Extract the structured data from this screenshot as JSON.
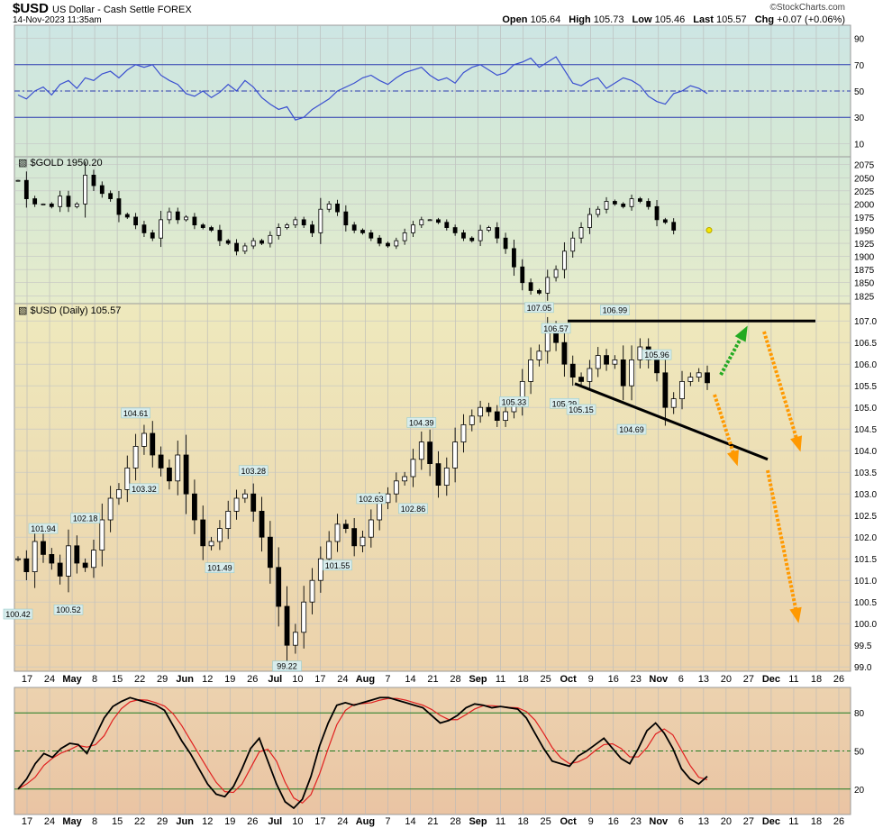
{
  "header": {
    "symbol": "$USD",
    "description": "US Dollar - Cash Settle  FOREX",
    "timestamp": "14-Nov-2023 11:35am",
    "open_label": "Open",
    "open": "105.64",
    "high_label": "High",
    "high": "105.73",
    "low_label": "Low",
    "low": "105.46",
    "last_label": "Last",
    "last": "105.57",
    "chg_label": "Chg",
    "chg": "+0.07 (+0.06%)",
    "credit": "©StockCharts.com"
  },
  "panels": {
    "gold_label": "$GOLD 1950.20",
    "usd_label": "$USD (Daily) 105.57"
  },
  "x_axis": {
    "labels": [
      "17",
      "24",
      "May",
      "8",
      "15",
      "22",
      "29",
      "Jun",
      "12",
      "19",
      "26",
      "Jul",
      "10",
      "17",
      "24",
      "Aug",
      "7",
      "14",
      "21",
      "28",
      "Sep",
      "11",
      "18",
      "25",
      "Oct",
      "9",
      "16",
      "23",
      "Nov",
      "6",
      "13",
      "20",
      "27",
      "Dec",
      "11",
      "18",
      "26"
    ],
    "bold": [
      "May",
      "Jun",
      "Jul",
      "Aug",
      "Sep",
      "Oct",
      "Nov",
      "Dec"
    ]
  },
  "colors": {
    "rsi_line": "#3a4fd0",
    "stoch_k": "#000000",
    "stoch_d": "#e02020",
    "green_arrow": "#22aa22",
    "orange_arrow": "#ff9900",
    "frame": "#9a9a9a"
  },
  "chart_data": [
    {
      "type": "line",
      "name": "RSI",
      "ylim": [
        0,
        100
      ],
      "ticks": [
        10,
        30,
        50,
        70,
        90
      ],
      "reference_lines": [
        30,
        50,
        70
      ],
      "values": [
        47,
        44,
        50,
        53,
        47,
        55,
        58,
        52,
        60,
        58,
        63,
        65,
        60,
        66,
        70,
        68,
        70,
        62,
        58,
        55,
        48,
        46,
        50,
        45,
        49,
        55,
        50,
        58,
        53,
        45,
        40,
        36,
        38,
        28,
        30,
        36,
        40,
        44,
        50,
        53,
        56,
        60,
        62,
        58,
        55,
        60,
        64,
        66,
        68,
        62,
        58,
        60,
        56,
        64,
        68,
        70,
        66,
        62,
        64,
        70,
        72,
        75,
        68,
        72,
        76,
        66,
        56,
        54,
        58,
        60,
        52,
        56,
        60,
        58,
        54,
        46,
        42,
        40,
        48,
        50,
        54,
        52,
        48
      ]
    },
    {
      "type": "line",
      "name": "$GOLD 1950.20",
      "ylim": [
        1810,
        2090
      ],
      "ticks": [
        1825,
        1850,
        1875,
        1900,
        1925,
        1950,
        1975,
        2000,
        2025,
        2050,
        2075
      ],
      "values": [
        2045,
        2010,
        2000,
        2000,
        1995,
        2015,
        1995,
        2000,
        2055,
        2035,
        2020,
        2010,
        1980,
        1975,
        1960,
        1945,
        1935,
        1970,
        1985,
        1970,
        1975,
        1960,
        1955,
        1950,
        1930,
        1925,
        1910,
        1920,
        1930,
        1925,
        1940,
        1955,
        1960,
        1970,
        1960,
        1945,
        1990,
        2000,
        1985,
        1960,
        1950,
        1945,
        1935,
        1925,
        1920,
        1930,
        1945,
        1960,
        1970,
        1970,
        1965,
        1955,
        1945,
        1935,
        1930,
        1950,
        1955,
        1935,
        1915,
        1880,
        1850,
        1835,
        1830,
        1860,
        1875,
        1910,
        1935,
        1955,
        1980,
        1990,
        2005,
        2000,
        1995,
        2010,
        2005,
        1995,
        1970,
        1965,
        1950
      ]
    },
    {
      "type": "bar",
      "name": "$USD (Daily) 105.57",
      "ylim": [
        98.9,
        107.4
      ],
      "ticks": [
        99.0,
        99.5,
        100.0,
        100.5,
        101.0,
        101.5,
        102.0,
        102.5,
        103.0,
        103.5,
        104.0,
        104.5,
        105.0,
        105.5,
        106.0,
        106.5,
        107.0
      ],
      "closes": [
        101.5,
        101.2,
        101.9,
        101.6,
        101.4,
        101.1,
        101.8,
        101.4,
        101.3,
        101.7,
        102.4,
        102.9,
        103.1,
        103.6,
        104.1,
        104.4,
        103.9,
        103.6,
        103.3,
        103.9,
        103.0,
        102.4,
        101.8,
        101.9,
        102.2,
        102.6,
        102.9,
        103.0,
        102.6,
        102.0,
        101.3,
        100.4,
        99.5,
        99.8,
        100.5,
        101.0,
        101.5,
        101.9,
        102.3,
        102.2,
        101.8,
        102.0,
        102.4,
        102.8,
        103.0,
        103.3,
        103.4,
        103.8,
        104.2,
        103.7,
        103.2,
        103.6,
        104.2,
        104.6,
        104.8,
        105.0,
        104.9,
        104.7,
        104.9,
        105.1,
        105.6,
        106.1,
        106.3,
        106.8,
        106.5,
        106.0,
        105.7,
        105.6,
        105.9,
        106.2,
        106.0,
        106.1,
        105.5,
        106.1,
        106.4,
        106.1,
        105.8,
        105.0,
        105.2,
        105.6,
        105.7,
        105.8,
        105.57
      ],
      "annotations": [
        {
          "label": "100.42",
          "value": 100.42
        },
        {
          "label": "101.94",
          "value": 101.94
        },
        {
          "label": "102.18",
          "value": 102.18
        },
        {
          "label": "100.52",
          "value": 100.52
        },
        {
          "label": "104.61",
          "value": 104.61
        },
        {
          "label": "103.32",
          "value": 103.32
        },
        {
          "label": "101.49",
          "value": 101.49
        },
        {
          "label": "103.28",
          "value": 103.28
        },
        {
          "label": "99.22",
          "value": 99.22
        },
        {
          "label": "101.55",
          "value": 101.55
        },
        {
          "label": "102.63",
          "value": 102.63
        },
        {
          "label": "102.86",
          "value": 102.86
        },
        {
          "label": "104.39",
          "value": 104.39
        },
        {
          "label": "105.33",
          "value": 105.33
        },
        {
          "label": "107.05",
          "value": 107.05
        },
        {
          "label": "106.57",
          "value": 106.57
        },
        {
          "label": "105.29",
          "value": 105.29
        },
        {
          "label": "105.15",
          "value": 105.15
        },
        {
          "label": "106.99",
          "value": 106.99
        },
        {
          "label": "104.69",
          "value": 104.69
        },
        {
          "label": "105.96",
          "value": 105.96
        }
      ],
      "resistance": 107.0,
      "support_start": 105.55,
      "support_end": 103.8
    },
    {
      "type": "line",
      "name": "Stochastic",
      "ylim": [
        0,
        100
      ],
      "ticks": [
        20,
        50,
        80
      ],
      "reference_lines": [
        20,
        50,
        80
      ],
      "k": [
        20,
        28,
        40,
        48,
        45,
        52,
        56,
        55,
        48,
        62,
        76,
        85,
        89,
        92,
        90,
        88,
        86,
        82,
        70,
        58,
        48,
        36,
        24,
        16,
        14,
        22,
        36,
        52,
        60,
        42,
        24,
        10,
        5,
        12,
        30,
        54,
        72,
        86,
        88,
        86,
        88,
        90,
        92,
        92,
        90,
        88,
        86,
        84,
        78,
        72,
        74,
        78,
        84,
        87,
        86,
        84,
        85,
        84,
        83,
        76,
        64,
        52,
        42,
        40,
        38,
        46,
        50,
        55,
        60,
        52,
        44,
        40,
        52,
        66,
        72,
        64,
        52,
        36,
        28,
        24,
        30
      ]
    }
  ]
}
